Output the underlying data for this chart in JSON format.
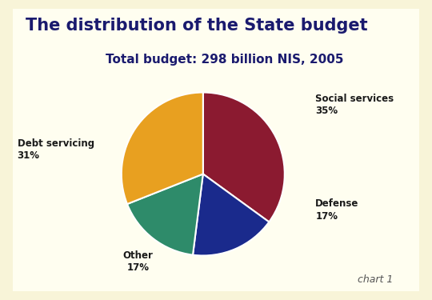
{
  "title": "The distribution of the State budget",
  "subtitle": "Total budget: 298 billion NIS, 2005",
  "chart_note": "chart 1",
  "slices": [
    {
      "label": "Social services",
      "pct": "35%",
      "value": 35,
      "color": "#8B1A30"
    },
    {
      "label": "Defense",
      "pct": "17%",
      "value": 17,
      "color": "#1A2A8C"
    },
    {
      "label": "Other",
      "pct": "17%",
      "value": 17,
      "color": "#2E8B6A"
    },
    {
      "label": "Debt servicing",
      "pct": "31%",
      "value": 31,
      "color": "#E8A020"
    }
  ],
  "start_angle": 90,
  "bg_cream": "#FFFEF0",
  "bg_outer": "#F8F4D8",
  "title_color": "#1A1A6E",
  "subtitle_color": "#1A1A6E",
  "label_color": "#1A1A1A",
  "title_fontsize": 15,
  "subtitle_fontsize": 11,
  "label_fontsize": 8.5,
  "note_fontsize": 9
}
